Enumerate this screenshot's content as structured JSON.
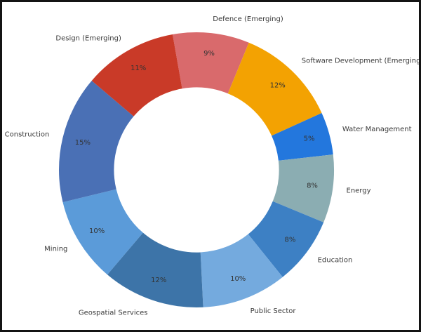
{
  "figure": {
    "background_color": "#ffffff",
    "frame_color": "#141414"
  },
  "chart_data": {
    "type": "pie",
    "subtype": "donut",
    "title": "",
    "legend": "none",
    "slices": [
      {
        "label": "Defence (Emerging)",
        "value": 9,
        "pct_label": "9%",
        "color": "#d96a6c"
      },
      {
        "label": "Software Development (Emerging)",
        "value": 12,
        "pct_label": "12%",
        "color": "#f3a202"
      },
      {
        "label": "Water Management",
        "value": 5,
        "pct_label": "5%",
        "color": "#2377dd"
      },
      {
        "label": "Energy",
        "value": 8,
        "pct_label": "8%",
        "color": "#8badb2"
      },
      {
        "label": "Education",
        "value": 8,
        "pct_label": "8%",
        "color": "#3d80c4"
      },
      {
        "label": "Public Sector",
        "value": 10,
        "pct_label": "10%",
        "color": "#74aade"
      },
      {
        "label": "Geospatial Services",
        "value": 12,
        "pct_label": "12%",
        "color": "#3d74a8"
      },
      {
        "label": "Mining",
        "value": 10,
        "pct_label": "10%",
        "color": "#5b9bd9"
      },
      {
        "label": "Construction",
        "value": 15,
        "pct_label": "15%",
        "color": "#4a70b5"
      },
      {
        "label": "Design (Emerging)",
        "value": 11,
        "pct_label": "11%",
        "color": "#c93a28"
      }
    ],
    "layout_hints": {
      "start_angle_deg": 100,
      "counterclockwise": false,
      "donut_hole_ratio": 0.6,
      "pct_label_distance": 0.85,
      "category_label_distance": 1.1
    },
    "category_label_color": "#3a3a3a",
    "pct_label_color": "#333333"
  }
}
